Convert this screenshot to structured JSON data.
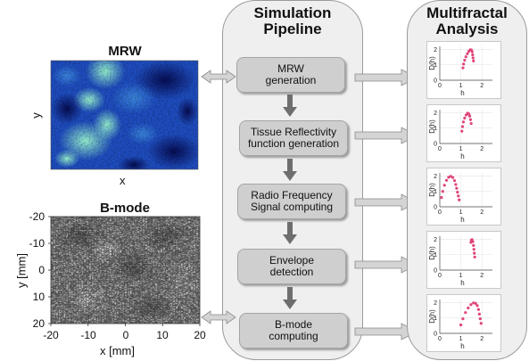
{
  "left": {
    "mrw_title": "MRW",
    "mrw_xlabel": "x",
    "mrw_ylabel": "y",
    "bmode_title": "B-mode",
    "bmode_xlabel": "x [mm]",
    "bmode_ylabel": "y [mm]",
    "bmode_xticks": [
      "-20",
      "-10",
      "0",
      "10",
      "20"
    ],
    "bmode_yticks": [
      "-20",
      "-10",
      "0",
      "10",
      "20"
    ]
  },
  "pipeline": {
    "title_line1": "Simulation",
    "title_line2": "Pipeline",
    "steps": [
      {
        "line1": "MRW",
        "line2": "generation"
      },
      {
        "line1": "Tissue Reflectivity",
        "line2": "function generation"
      },
      {
        "line1": "Radio Frequency",
        "line2": "Signal computing"
      },
      {
        "line1": "Envelope",
        "line2": "detection"
      },
      {
        "line1": "B-mode",
        "line2": "computing"
      }
    ]
  },
  "analysis": {
    "title_line1": "Multifractal",
    "title_line2": "Analysis",
    "xlabel": "h",
    "ylabel": "D(h)",
    "xticks": [
      "0",
      "1",
      "2"
    ],
    "yticks": [
      "0",
      "1",
      "2"
    ],
    "marker_color": "#e0437a"
  },
  "colors": {
    "panel": "#efefef",
    "box": "#cfcfcf",
    "arrow": "#6e6e6e"
  },
  "chart_data": [
    {
      "type": "scatter",
      "xlabel": "h",
      "ylabel": "D(h)",
      "xlim": [
        0,
        2.5
      ],
      "ylim": [
        0,
        2.2
      ],
      "x": [
        1.1,
        1.13,
        1.18,
        1.24,
        1.31,
        1.38,
        1.45,
        1.5,
        1.54,
        1.56,
        1.58,
        1.6
      ],
      "y": [
        0.8,
        1.05,
        1.3,
        1.52,
        1.72,
        1.88,
        1.98,
        1.96,
        1.85,
        1.65,
        1.45,
        1.25
      ]
    },
    {
      "type": "scatter",
      "xlabel": "h",
      "ylabel": "D(h)",
      "xlim": [
        0,
        2.5
      ],
      "ylim": [
        0,
        2.2
      ],
      "x": [
        1.05,
        1.08,
        1.12,
        1.18,
        1.25,
        1.32,
        1.38,
        1.42,
        1.46,
        1.49
      ],
      "y": [
        0.8,
        1.1,
        1.4,
        1.65,
        1.85,
        1.97,
        1.92,
        1.78,
        1.55,
        1.3
      ]
    },
    {
      "type": "scatter",
      "xlabel": "h",
      "ylabel": "D(h)",
      "xlim": [
        0,
        2.5
      ],
      "ylim": [
        0,
        2.2
      ],
      "x": [
        0.08,
        0.14,
        0.22,
        0.32,
        0.42,
        0.52,
        0.62,
        0.7,
        0.76,
        0.8,
        0.84,
        0.88,
        0.92
      ],
      "y": [
        0.6,
        1.0,
        1.4,
        1.72,
        1.92,
        1.98,
        1.9,
        1.7,
        1.45,
        1.2,
        0.95,
        0.7,
        0.45
      ]
    },
    {
      "type": "scatter",
      "xlabel": "h",
      "ylabel": "D(h)",
      "xlim": [
        0,
        2.5
      ],
      "ylim": [
        0,
        2.2
      ],
      "x": [
        1.48,
        1.5,
        1.53,
        1.57,
        1.6,
        1.62,
        1.64,
        1.66
      ],
      "y": [
        1.8,
        1.95,
        1.98,
        1.85,
        1.6,
        1.35,
        1.1,
        0.85
      ]
    },
    {
      "type": "scatter",
      "xlabel": "h",
      "ylabel": "D(h)",
      "xlim": [
        0,
        2.5
      ],
      "ylim": [
        0,
        2.2
      ],
      "x": [
        1.0,
        1.1,
        1.22,
        1.35,
        1.48,
        1.6,
        1.7,
        1.78,
        1.84,
        1.88,
        1.92,
        1.96
      ],
      "y": [
        0.55,
        0.95,
        1.35,
        1.65,
        1.87,
        1.98,
        1.95,
        1.8,
        1.55,
        1.25,
        0.95,
        0.65
      ]
    }
  ]
}
